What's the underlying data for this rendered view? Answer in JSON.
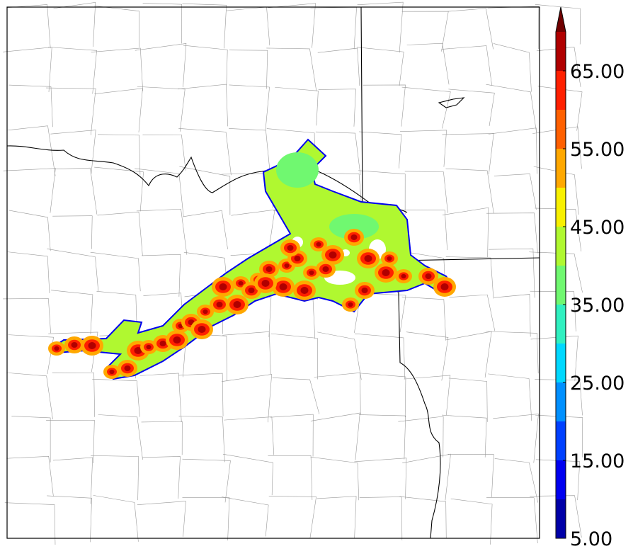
{
  "colorbar": {
    "boundaries": [
      5,
      10,
      15,
      20,
      25,
      30,
      35,
      40,
      45,
      50,
      55,
      60,
      65,
      70
    ],
    "colors": [
      "#0000a8",
      "#0000f0",
      "#0040ff",
      "#0090ff",
      "#00d8ff",
      "#30f0c0",
      "#70f870",
      "#b0f830",
      "#f8f000",
      "#ffa800",
      "#ff6000",
      "#ff2000",
      "#b00000"
    ],
    "over_color": "#700000",
    "ticks": [
      {
        "value": 5,
        "label": "5.00"
      },
      {
        "value": 15,
        "label": "15.00"
      },
      {
        "value": 25,
        "label": "25.00"
      },
      {
        "value": 35,
        "label": "35.00"
      },
      {
        "value": 45,
        "label": "45.00"
      },
      {
        "value": 55,
        "label": "55.00"
      },
      {
        "value": 65,
        "label": "65.00"
      }
    ]
  }
}
